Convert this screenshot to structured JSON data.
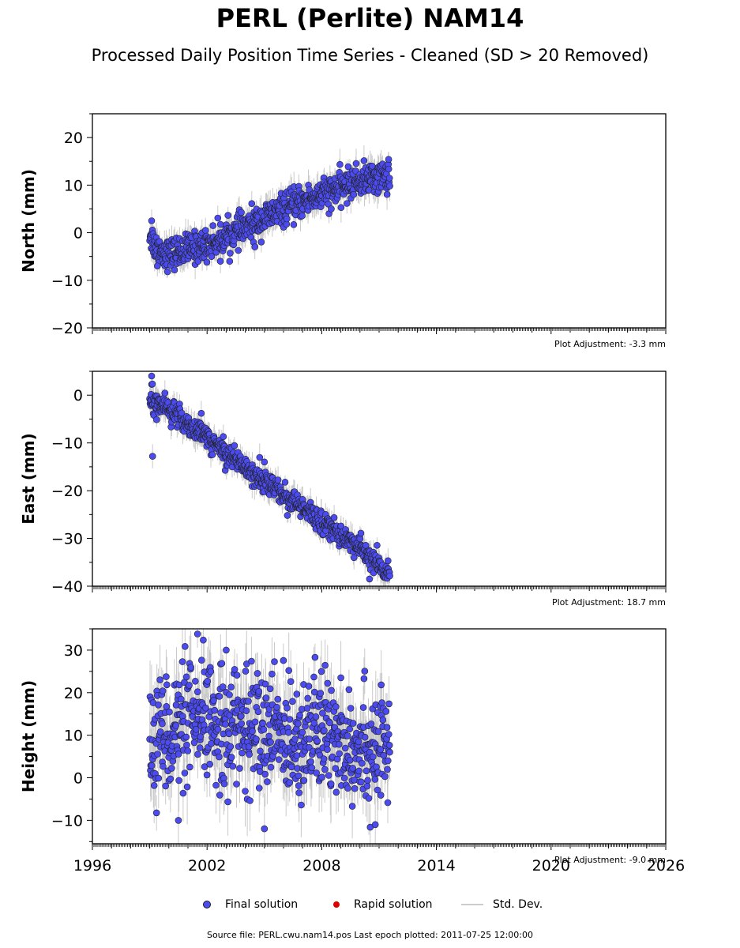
{
  "chart_data": {
    "type": "scatter",
    "title": "PERL (Perlite) NAM14",
    "subtitle": "Processed Daily Position Time Series - Cleaned (SD > 20 Removed)",
    "x_tick_labels": [
      "1996",
      "2002",
      "2008",
      "2014",
      "2020",
      "2026"
    ],
    "xlim": [
      1996,
      2026
    ],
    "panels": [
      {
        "ylabel": "North (mm)",
        "ylim": [
          -20,
          25
        ],
        "y_ticks": [
          -20,
          -10,
          0,
          10,
          20
        ],
        "y_tick_labels": [
          "−20",
          "−10",
          "0",
          "10",
          "20"
        ],
        "adjustment_label": "Plot Adjustment: -3.3 mm",
        "trend": [
          [
            1999.0,
            0.0
          ],
          [
            1999.3,
            -3.0
          ],
          [
            2000.0,
            -4.5
          ],
          [
            2002.0,
            -2.5
          ],
          [
            2004.0,
            1.0
          ],
          [
            2006.0,
            5.0
          ],
          [
            2008.0,
            8.0
          ],
          [
            2010.0,
            11.0
          ],
          [
            2011.55,
            12.0
          ]
        ],
        "scatter": 1.6,
        "sd": 2.2,
        "outliers": [
          [
            1999.1,
            2.5
          ],
          [
            1999.4,
            -7.0
          ],
          [
            2002.7,
            -6.0
          ],
          [
            2004.5,
            -3.0
          ],
          [
            2008.5,
            5.0
          ],
          [
            2011.5,
            15.4
          ]
        ]
      },
      {
        "ylabel": "East (mm)",
        "ylim": [
          -40,
          5
        ],
        "y_ticks": [
          -40,
          -30,
          -20,
          -10,
          0
        ],
        "y_tick_labels": [
          "−40",
          "−30",
          "−20",
          "−10",
          "0"
        ],
        "adjustment_label": "Plot Adjustment: 18.7 mm",
        "trend": [
          [
            1999.0,
            0.0
          ],
          [
            2002.0,
            -9.0
          ],
          [
            2005.0,
            -18.0
          ],
          [
            2008.0,
            -26.5
          ],
          [
            2010.0,
            -32.0
          ],
          [
            2011.55,
            -38.0
          ]
        ],
        "scatter": 1.2,
        "sd": 2.0,
        "outliers": [
          [
            1999.1,
            4.0
          ],
          [
            1999.15,
            -12.8
          ],
          [
            2001.7,
            -3.8
          ],
          [
            2005.0,
            -14.0
          ],
          [
            2010.5,
            -38.5
          ]
        ]
      },
      {
        "ylabel": "Height (mm)",
        "ylim": [
          -15.5,
          35
        ],
        "y_ticks": [
          -10,
          0,
          10,
          20,
          30
        ],
        "y_tick_labels": [
          "−10",
          "0",
          "10",
          "20",
          "30"
        ],
        "adjustment_label": "Plot Adjustment: -9.0 mm",
        "trend": [
          [
            1999.0,
            10.0
          ],
          [
            2002.0,
            13.0
          ],
          [
            2004.0,
            12.0
          ],
          [
            2006.0,
            10.0
          ],
          [
            2008.0,
            10.0
          ],
          [
            2010.0,
            8.0
          ],
          [
            2011.55,
            6.0
          ]
        ],
        "scatter": 7.0,
        "sd": 6.0,
        "outliers": [
          [
            2001.5,
            33.8
          ],
          [
            2003.0,
            30.0
          ],
          [
            2005.0,
            -12.0
          ],
          [
            2000.5,
            -10.0
          ],
          [
            2010.8,
            -11.0
          ],
          [
            2009.0,
            23.5
          ]
        ]
      }
    ],
    "x_range_data": [
      1999.0,
      2011.56
    ],
    "series": [
      {
        "name": "Final solution",
        "color": "#4b4bf0"
      },
      {
        "name": "Rapid solution",
        "color": "#dd0000"
      },
      {
        "name": "Std. Dev.",
        "color": "#cccccc"
      }
    ]
  },
  "legend": {
    "final": "Final solution",
    "rapid": "Rapid solution",
    "sd": "Std. Dev."
  },
  "source_text": "Source file: PERL.cwu.nam14.pos  Last epoch plotted: 2011-07-25 12:00:00"
}
